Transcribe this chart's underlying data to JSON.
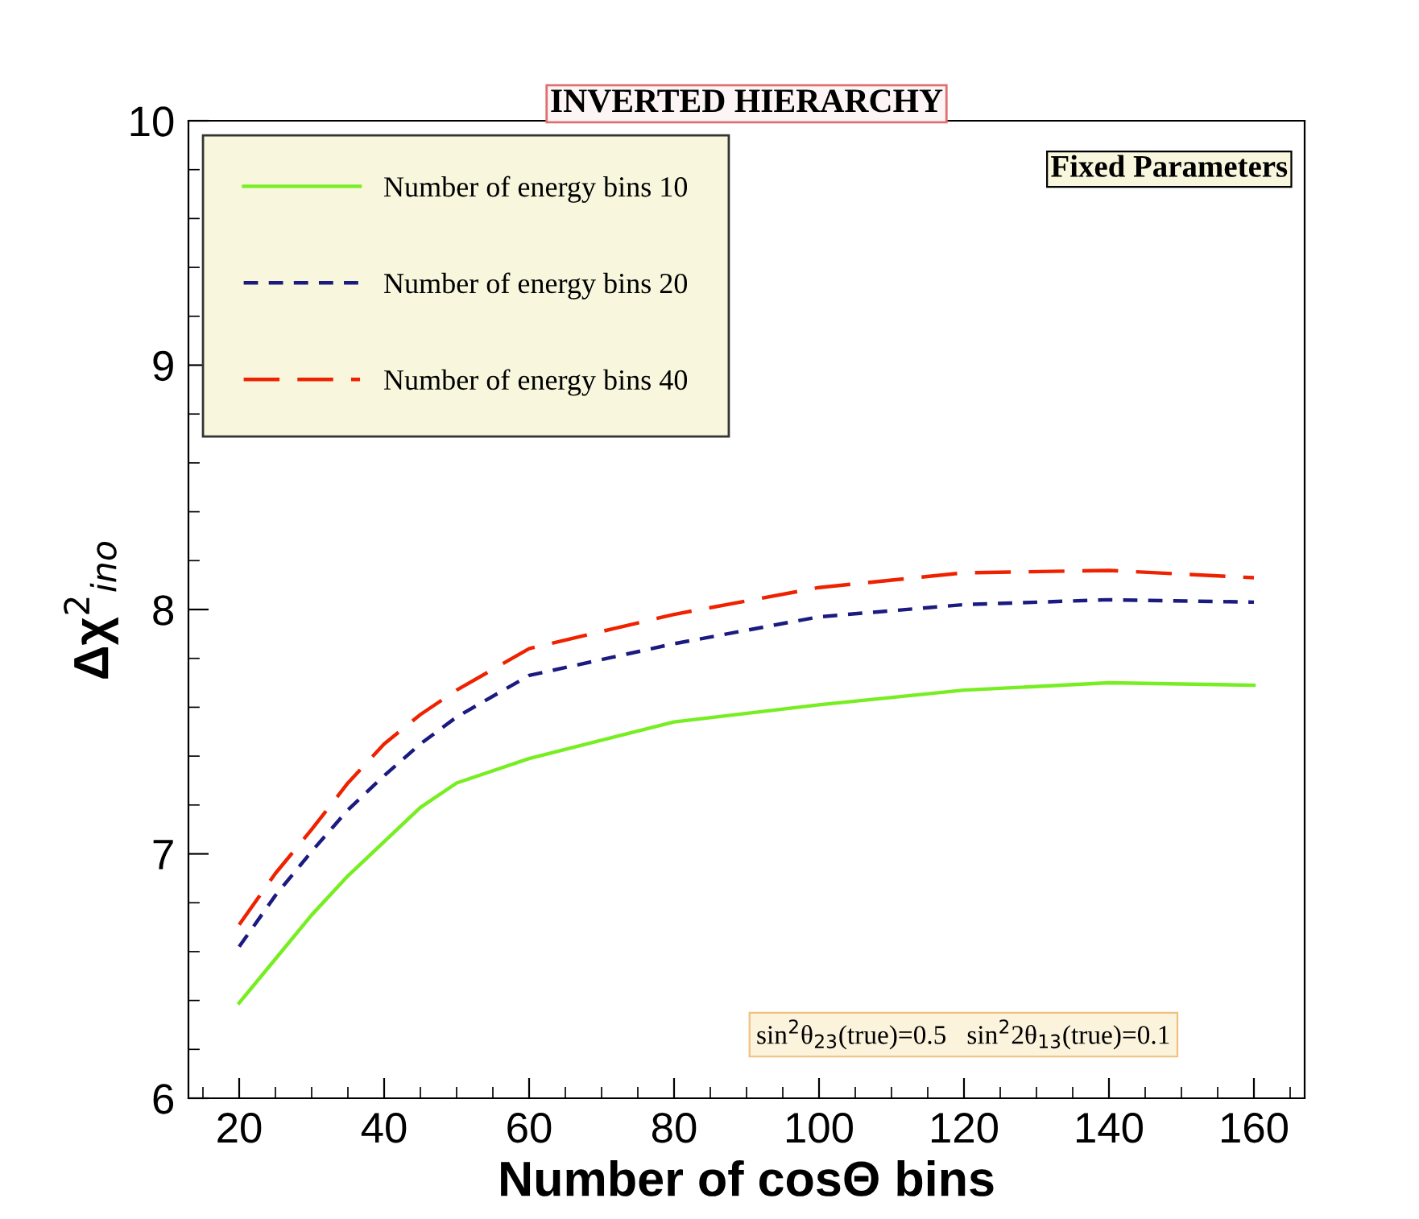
{
  "chart_data": {
    "type": "line",
    "title": "INVERTED HIERARCHY",
    "xlabel": "Number of cosΘ bins",
    "ylabel": "Δχ$^{2}$$_{ino}$",
    "x": [
      20,
      25,
      30,
      35,
      40,
      45,
      50,
      60,
      80,
      100,
      120,
      140,
      160
    ],
    "series": [
      {
        "name": "Number of energy bins 10",
        "color": "#77ee22",
        "line_style": "solid",
        "values": [
          6.39,
          6.57,
          6.75,
          6.91,
          7.05,
          7.19,
          7.29,
          7.39,
          7.54,
          7.61,
          7.67,
          7.7,
          7.69
        ]
      },
      {
        "name": "Number of energy bins 20",
        "color": "#1a1a80",
        "line_style": "dashed",
        "values": [
          6.62,
          6.83,
          7.01,
          7.18,
          7.32,
          7.45,
          7.56,
          7.73,
          7.86,
          7.97,
          8.02,
          8.04,
          8.03
        ]
      },
      {
        "name": "Number of energy bins 40",
        "color": "#ee2200",
        "line_style": "dashed",
        "values": [
          6.71,
          6.92,
          7.1,
          7.29,
          7.45,
          7.57,
          7.67,
          7.84,
          7.98,
          8.09,
          8.15,
          8.16,
          8.13
        ]
      }
    ],
    "xlim": [
      13,
      167
    ],
    "ylim": [
      6,
      10
    ],
    "xticks": [
      20,
      40,
      60,
      80,
      100,
      120,
      140,
      160
    ],
    "yticks": [
      6,
      7,
      8,
      9,
      10
    ],
    "grid": false,
    "legend": "top left",
    "marker": "none",
    "annotations": [
      "Fixed Parameters",
      "sin$^{2}$θ$_{23}$(true)=0.5   sin$^{2}$2θ$_{13}$(true)=0.1"
    ]
  }
}
